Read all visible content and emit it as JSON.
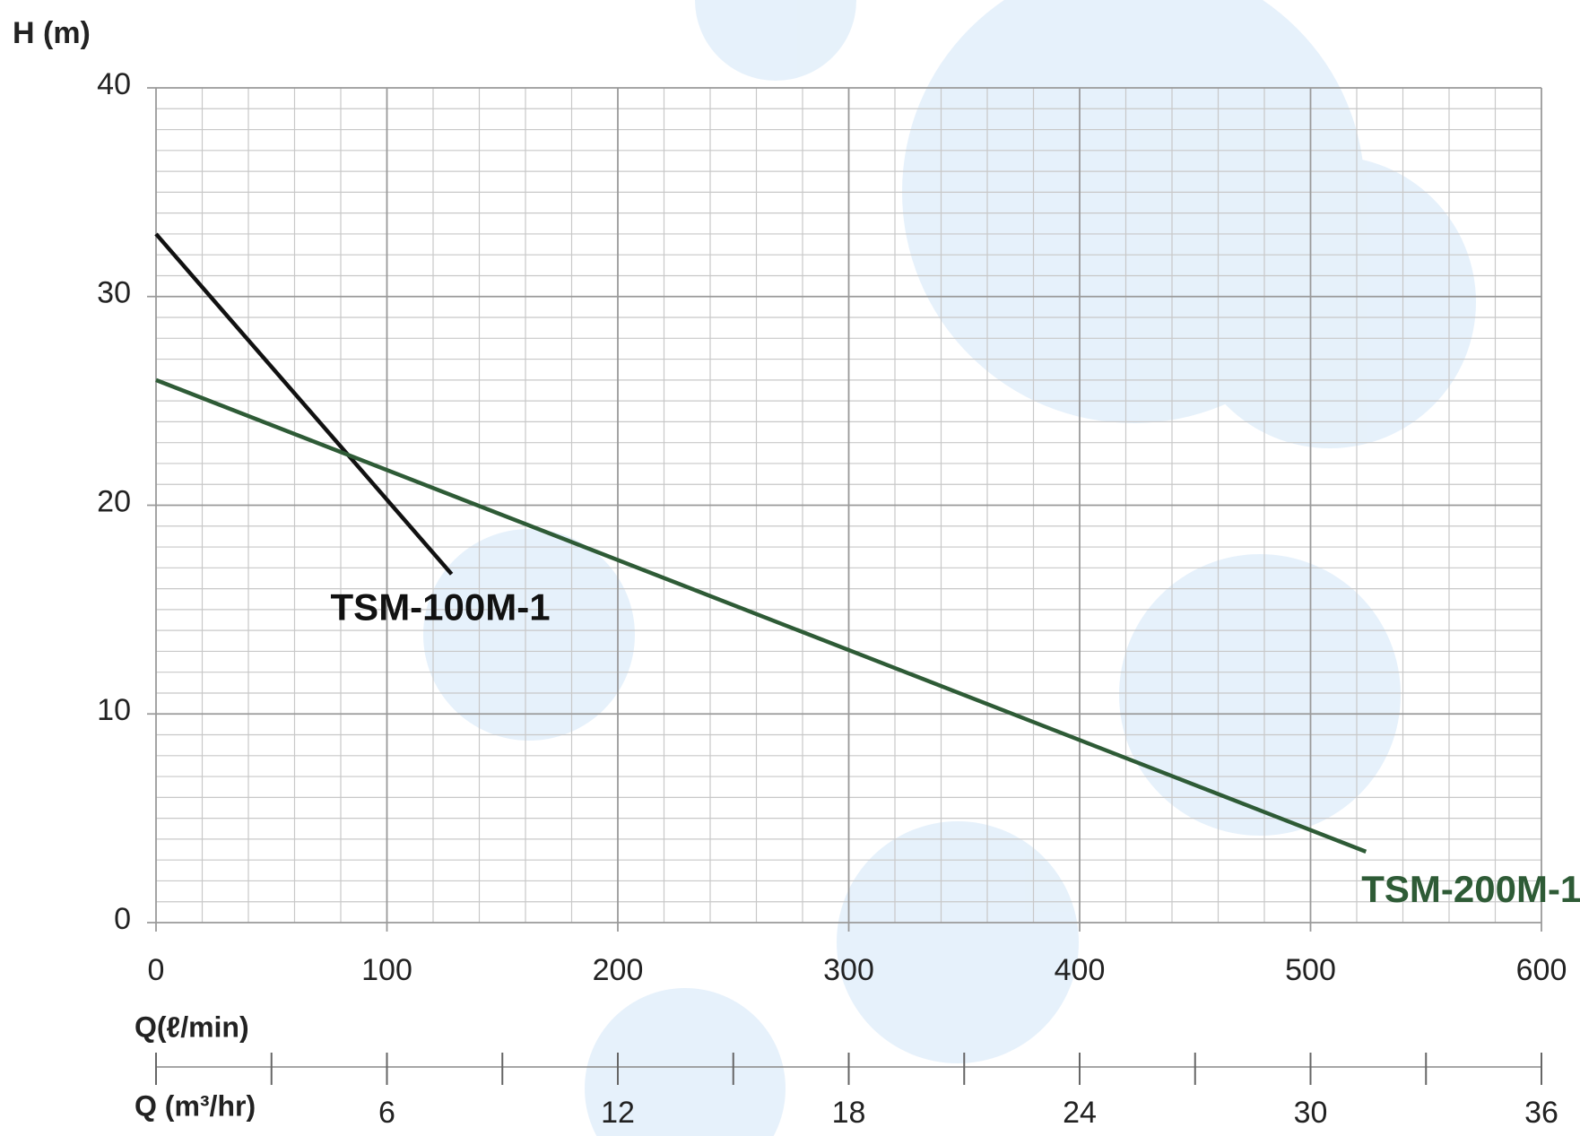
{
  "chart_data": {
    "type": "line",
    "y_label": "H (m)",
    "x_label": "Q(ℓ/min)",
    "x2_label": "Q (m³/hr)",
    "xlim": [
      0,
      600
    ],
    "xticks": [
      0,
      100,
      200,
      300,
      400,
      500,
      600
    ],
    "ylim": [
      0,
      40
    ],
    "yticks": [
      0,
      10,
      20,
      30,
      40
    ],
    "x_minor_grid": [
      20,
      40,
      60,
      80,
      120,
      140,
      160,
      180,
      220,
      240,
      260,
      280,
      320,
      340,
      360,
      380,
      420,
      440,
      460,
      480,
      520,
      540,
      560,
      580
    ],
    "y_minor_grid": [
      1,
      2,
      3,
      4,
      5,
      6,
      7,
      8,
      9,
      11,
      12,
      13,
      14,
      15,
      16,
      17,
      18,
      19,
      21,
      22,
      23,
      24,
      25,
      26,
      27,
      28,
      29,
      31,
      32,
      33,
      34,
      35,
      36,
      37,
      38,
      39
    ],
    "x2lim": [
      0,
      36
    ],
    "x2ticks": [
      6,
      12,
      18,
      24,
      30,
      36
    ],
    "x2_minor_ticks": [
      0,
      3,
      9,
      15,
      21,
      27,
      33
    ],
    "grid": true,
    "series": [
      {
        "name": "TSM-100M-1",
        "color": "#111111",
        "x": [
          0,
          128
        ],
        "values": [
          33,
          16.7
        ]
      },
      {
        "name": "TSM-200M-1",
        "color": "#2e5b36",
        "x": [
          0,
          524
        ],
        "values": [
          26,
          3.4
        ]
      }
    ]
  }
}
